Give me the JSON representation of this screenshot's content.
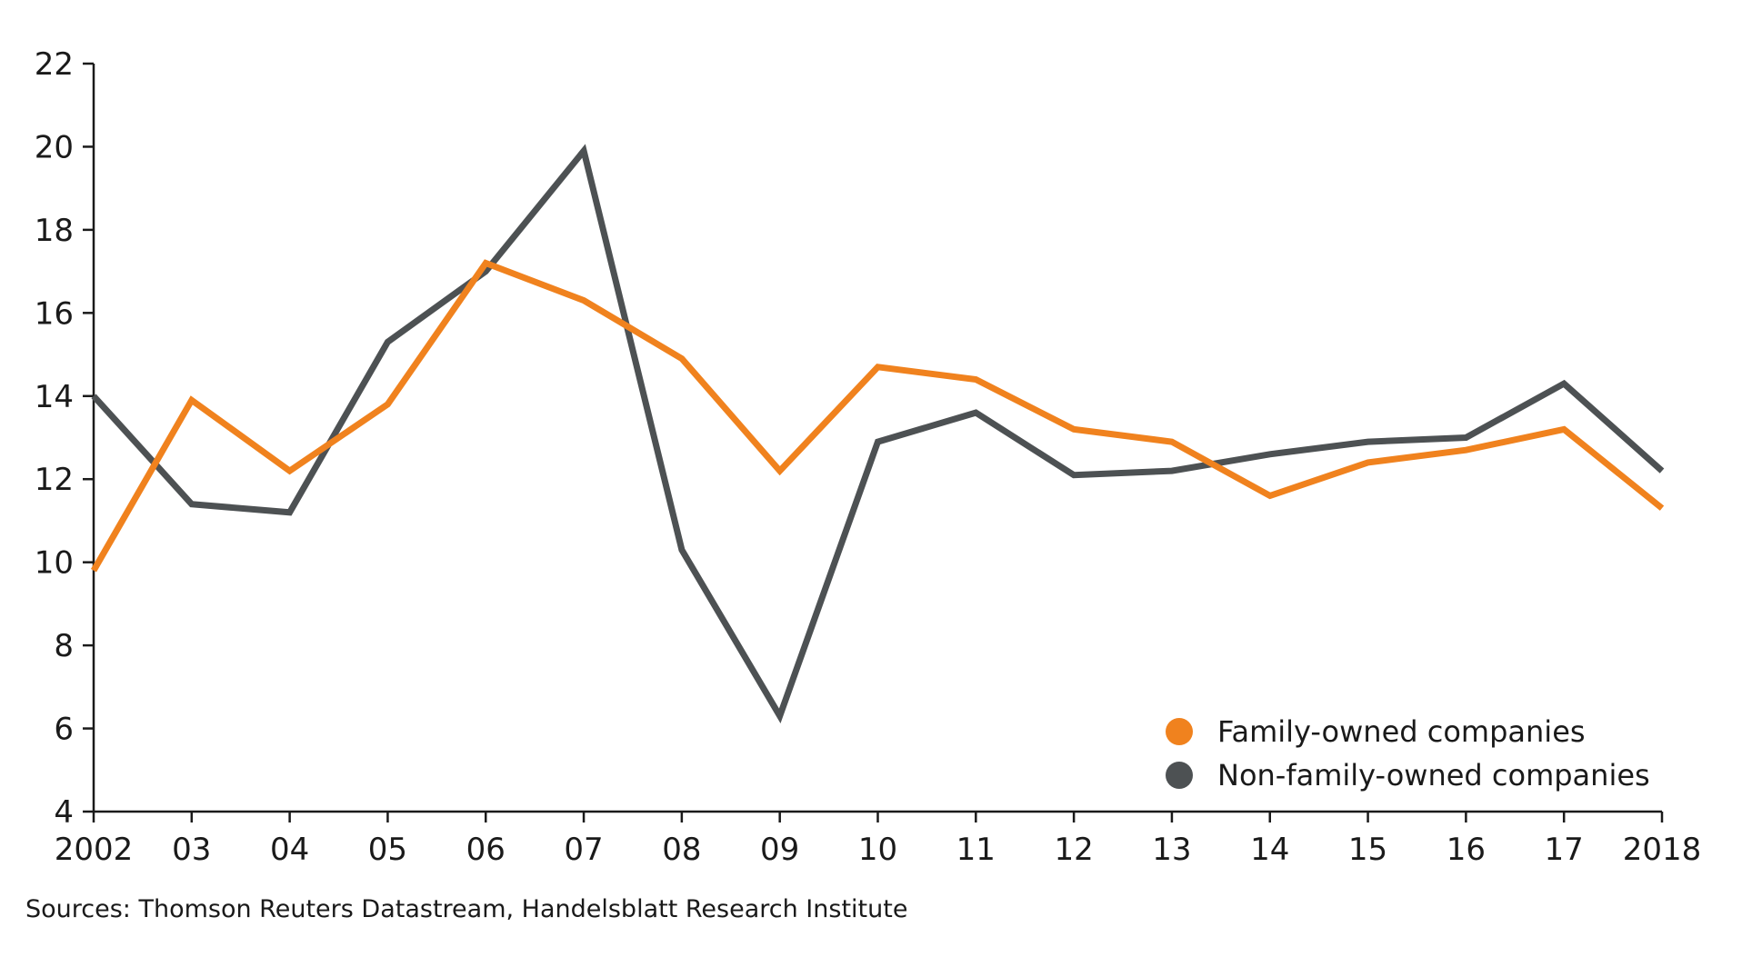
{
  "chart_data": {
    "type": "line",
    "title": "",
    "xlabel": "",
    "ylabel": "",
    "x": [
      "2002",
      "03",
      "04",
      "05",
      "06",
      "07",
      "08",
      "09",
      "10",
      "11",
      "12",
      "13",
      "14",
      "15",
      "16",
      "17",
      "2018"
    ],
    "ylim": [
      4,
      22
    ],
    "yticks": [
      4,
      6,
      8,
      10,
      12,
      14,
      16,
      18,
      20,
      22
    ],
    "grid": false,
    "legend_position": "bottom-right",
    "series": [
      {
        "name": "Family-owned companies",
        "color": "#f0821e",
        "values": [
          9.8,
          13.9,
          12.2,
          13.8,
          17.2,
          16.3,
          14.9,
          12.2,
          14.7,
          14.4,
          13.2,
          12.9,
          11.6,
          12.4,
          12.7,
          13.2,
          11.3
        ]
      },
      {
        "name": "Non-family-owned companies",
        "color": "#4d5153",
        "values": [
          14.0,
          11.4,
          11.2,
          15.3,
          17.0,
          19.9,
          10.3,
          6.3,
          12.9,
          13.6,
          12.1,
          12.2,
          12.6,
          12.9,
          13.0,
          14.3,
          12.2
        ]
      }
    ]
  },
  "source_note": "Sources: Thomson Reuters Datastream, Handelsblatt Research Institute",
  "colors": {
    "axis": "#1a1a1a",
    "family": "#f0821e",
    "non_family": "#4d5153"
  }
}
